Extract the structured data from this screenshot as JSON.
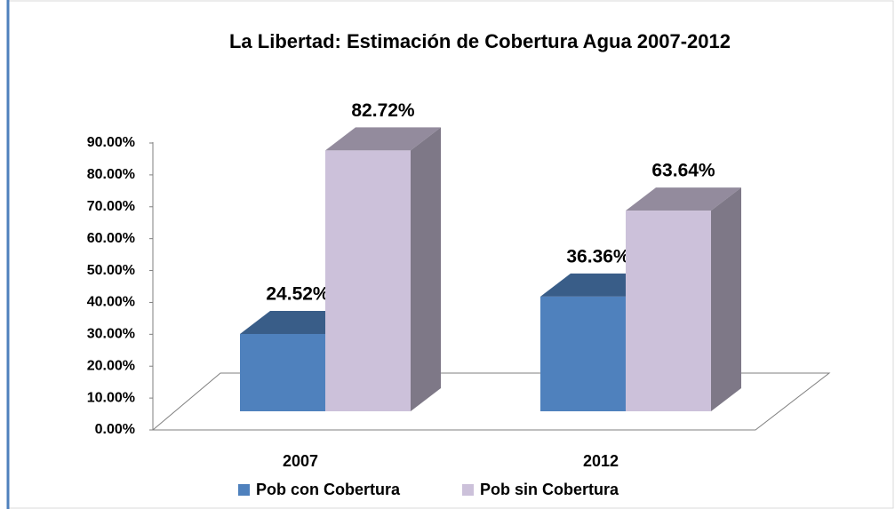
{
  "chart_data": {
    "type": "bar3d",
    "title": "La Libertad: Estimación de Cobertura Agua 2007-2012",
    "categories": [
      "2007",
      "2012"
    ],
    "series": [
      {
        "name": "Pob con Cobertura",
        "color": "#4f81bd",
        "values": [
          24.52,
          36.36
        ],
        "value_labels": [
          "24.52%",
          "36.36%"
        ]
      },
      {
        "name": "Pob sin Cobertura",
        "color": "#ccc1da",
        "values": [
          82.72,
          63.64
        ],
        "value_labels": [
          "82.72%",
          "63.64%"
        ]
      }
    ],
    "ylim": [
      0,
      90
    ],
    "yticks": [
      {
        "value": 0,
        "label": "0.00%"
      },
      {
        "value": 10,
        "label": "10.00%"
      },
      {
        "value": 20,
        "label": "20.00%"
      },
      {
        "value": 30,
        "label": "30.00%"
      },
      {
        "value": 40,
        "label": "40.00%"
      },
      {
        "value": 50,
        "label": "50.00%"
      },
      {
        "value": 60,
        "label": "60.00%"
      },
      {
        "value": 70,
        "label": "70.00%"
      },
      {
        "value": 80,
        "label": "80.00%"
      },
      {
        "value": 90,
        "label": "90.00%"
      }
    ],
    "legend": "bottom"
  }
}
